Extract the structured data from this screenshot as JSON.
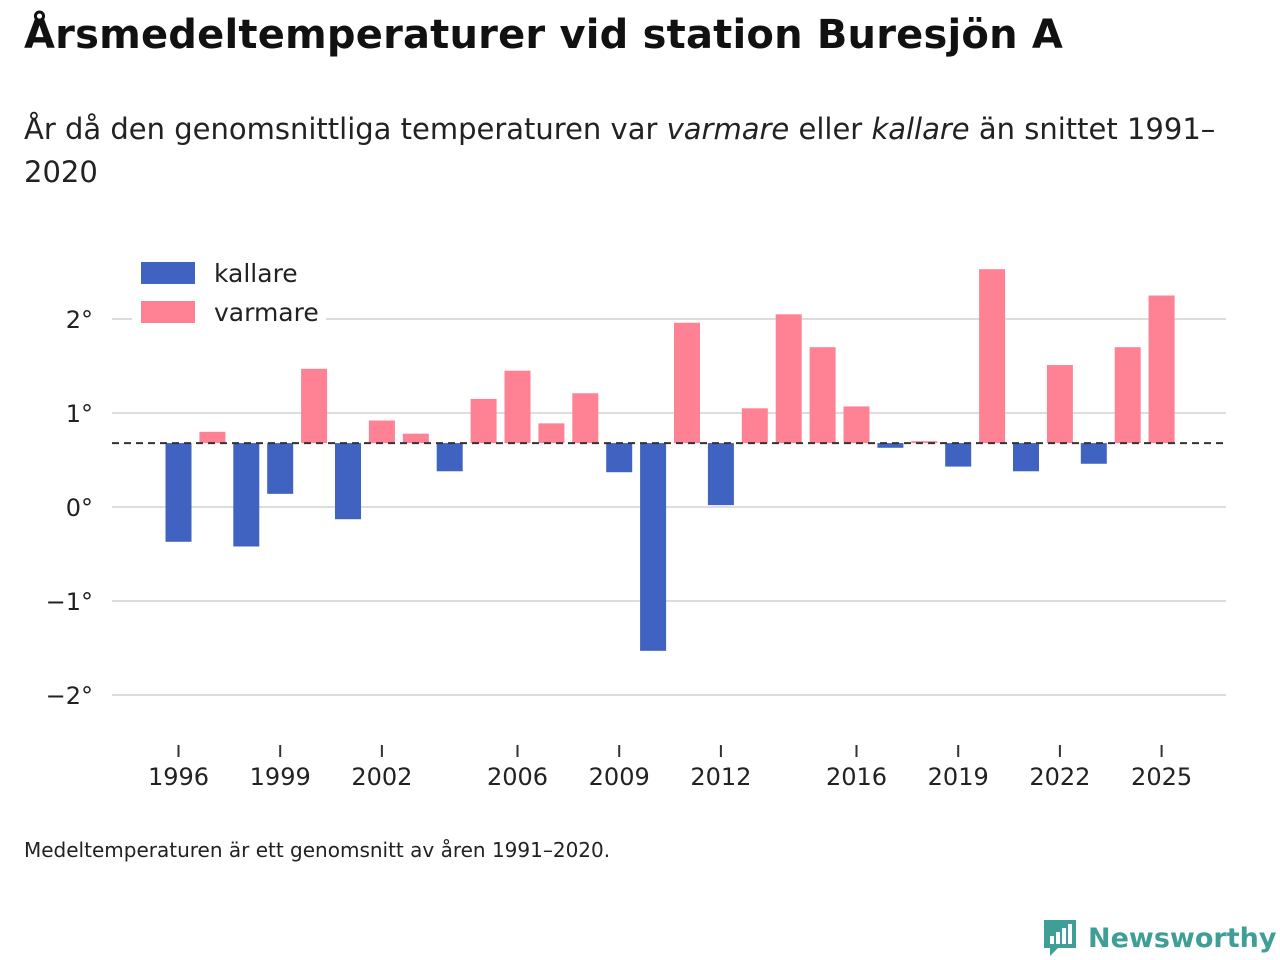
{
  "header": {
    "title": "Årsmedeltemperaturer vid station Buresjön A",
    "subtitle_part1": "År då den genomsnittliga temperaturen var ",
    "subtitle_warm": "varmare",
    "subtitle_part2": " eller ",
    "subtitle_cold": "kallare",
    "subtitle_part3": " än snittet 1991–2020"
  },
  "footer": {
    "note": "Medeltemperaturen är ett genomsnitt av åren 1991–2020.",
    "brand": "Newsworthy"
  },
  "colors": {
    "cold": "#4062c0",
    "warm": "#ff8294",
    "brand": "#3f9e95"
  },
  "icons": {
    "brand": "bar-chart-speech-icon"
  },
  "chart_data": {
    "type": "bar",
    "title": "Årsmedeltemperaturer vid station Buresjön A",
    "xlabel": "",
    "ylabel": "",
    "baseline": 0.68,
    "baseline_style": "dashed",
    "ylim": [
      -2.3,
      2.7
    ],
    "grid": true,
    "legend_position": "top-left",
    "legend": [
      {
        "key": "cold",
        "label": "kallare"
      },
      {
        "key": "warm",
        "label": "varmare"
      }
    ],
    "y_ticks": [
      {
        "value": 2,
        "label": "2°"
      },
      {
        "value": 1,
        "label": "1°"
      },
      {
        "value": 0,
        "label": "0°"
      },
      {
        "value": -1,
        "label": "−1°"
      },
      {
        "value": -2,
        "label": "−2°"
      }
    ],
    "x_ticks": [
      {
        "value": 1996,
        "label": "1996"
      },
      {
        "value": 1999,
        "label": "1999"
      },
      {
        "value": 2002,
        "label": "2002"
      },
      {
        "value": 2006,
        "label": "2006"
      },
      {
        "value": 2009,
        "label": "2009"
      },
      {
        "value": 2012,
        "label": "2012"
      },
      {
        "value": 2016,
        "label": "2016"
      },
      {
        "value": 2019,
        "label": "2019"
      },
      {
        "value": 2022,
        "label": "2022"
      },
      {
        "value": 2025,
        "label": "2025"
      }
    ],
    "series": [
      {
        "year": 1996,
        "value": -0.37
      },
      {
        "year": 1997,
        "value": 0.8
      },
      {
        "year": 1998,
        "value": -0.42
      },
      {
        "year": 1999,
        "value": 0.14
      },
      {
        "year": 2000,
        "value": 1.47
      },
      {
        "year": 2001,
        "value": -0.13
      },
      {
        "year": 2002,
        "value": 0.92
      },
      {
        "year": 2003,
        "value": 0.78
      },
      {
        "year": 2004,
        "value": 0.38
      },
      {
        "year": 2005,
        "value": 1.15
      },
      {
        "year": 2006,
        "value": 1.45
      },
      {
        "year": 2007,
        "value": 0.89
      },
      {
        "year": 2008,
        "value": 1.21
      },
      {
        "year": 2009,
        "value": 0.37
      },
      {
        "year": 2010,
        "value": -1.53
      },
      {
        "year": 2011,
        "value": 1.96
      },
      {
        "year": 2012,
        "value": 0.02
      },
      {
        "year": 2013,
        "value": 1.05
      },
      {
        "year": 2014,
        "value": 2.05
      },
      {
        "year": 2015,
        "value": 1.7
      },
      {
        "year": 2016,
        "value": 1.07
      },
      {
        "year": 2017,
        "value": 0.63
      },
      {
        "year": 2018,
        "value": 0.7
      },
      {
        "year": 2019,
        "value": 0.43
      },
      {
        "year": 2020,
        "value": 2.53
      },
      {
        "year": 2021,
        "value": 0.38
      },
      {
        "year": 2022,
        "value": 1.51
      },
      {
        "year": 2023,
        "value": 0.46
      },
      {
        "year": 2024,
        "value": 1.7
      },
      {
        "year": 2025,
        "value": 2.25
      }
    ]
  }
}
